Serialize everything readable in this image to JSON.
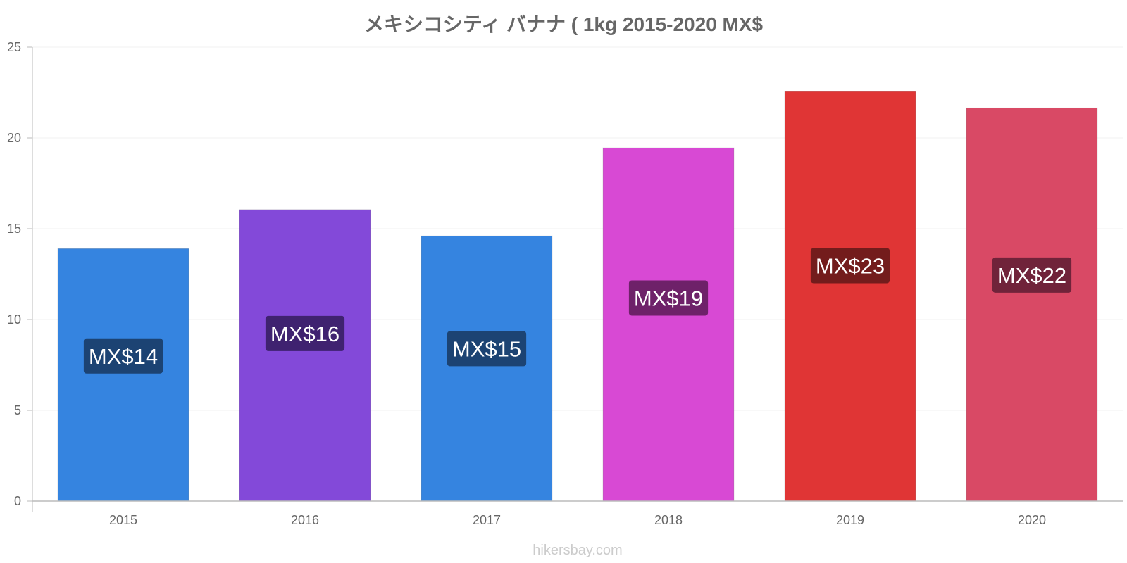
{
  "chart_data": {
    "type": "bar",
    "title": "メキシコシティ バナナ ( 1kg 2015-2020 MX$",
    "categories": [
      "2015",
      "2016",
      "2017",
      "2018",
      "2019",
      "2020"
    ],
    "values": [
      13.9,
      16.05,
      14.6,
      19.45,
      22.55,
      21.65
    ],
    "data_labels": [
      "MX$14",
      "MX$16",
      "MX$15",
      "MX$19",
      "MX$23",
      "MX$22"
    ],
    "bar_colors": [
      "#3584e0",
      "#8349d9",
      "#3584e0",
      "#d849d4",
      "#e03535",
      "#d94965"
    ],
    "label_bg_colors": [
      "#1c4373",
      "#3f2270",
      "#1c4373",
      "#6e2169",
      "#731c1c",
      "#70233a"
    ],
    "ylim": [
      0,
      25
    ],
    "yticks": [
      0,
      5,
      10,
      15,
      20,
      25
    ],
    "xlabel": "",
    "ylabel": "",
    "grid": true,
    "legend": "none"
  },
  "watermark": "hikersbay.com"
}
